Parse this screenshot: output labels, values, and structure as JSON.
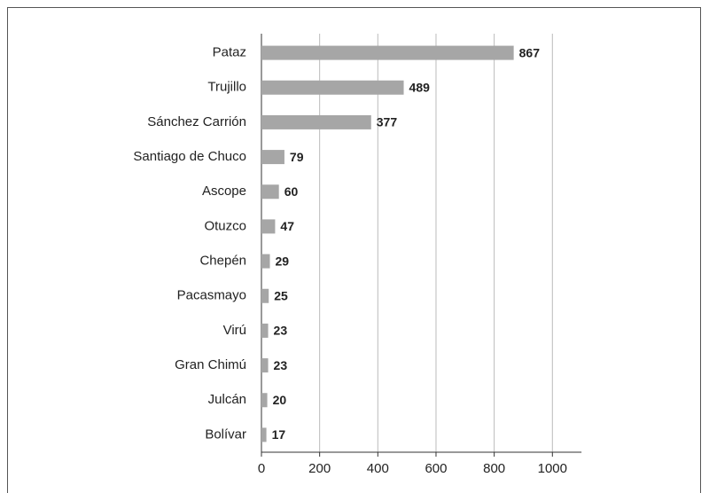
{
  "chart_data": {
    "type": "bar",
    "orientation": "horizontal",
    "categories": [
      "Pataz",
      "Trujillo",
      "Sánchez Carrión",
      "Santiago de Chuco",
      "Ascope",
      "Otuzco",
      "Chepén",
      "Pacasmayo",
      "Virú",
      "Gran Chimú",
      "Julcán",
      "Bolívar"
    ],
    "values": [
      867,
      489,
      377,
      79,
      60,
      47,
      29,
      25,
      23,
      23,
      20,
      17
    ],
    "color": "#a6a6a6",
    "xlim": [
      0,
      1100
    ],
    "xticks": [
      0,
      200,
      400,
      600,
      800,
      1000
    ],
    "grid": true
  }
}
